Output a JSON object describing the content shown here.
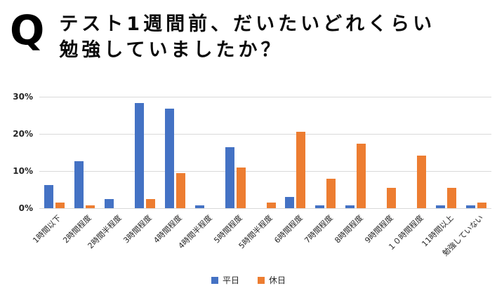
{
  "header": {
    "q_label": "Q",
    "title_line1": "テスト1週間前、だいたいどれくらい",
    "title_line2": "勉強していましたか？"
  },
  "chart_data": {
    "type": "bar",
    "title": "テスト1週間前、だいたいどれくらい勉強していましたか？",
    "categories": [
      "1時間以下",
      "2時間程度",
      "2時間半程度",
      "3時間程度",
      "4時間程度",
      "4時間半程度",
      "5時間程度",
      "5時間半程度",
      "6時間程度",
      "7時間程度",
      "8時間程度",
      "9時間程度",
      "１０時間程度",
      "11時間以上",
      "勉強していない"
    ],
    "series": [
      {
        "name": "平日",
        "slug": "weekday",
        "color": "#4472C4",
        "values": [
          6.3,
          12.6,
          2.4,
          28.3,
          26.8,
          0.8,
          16.5,
          0,
          3.1,
          0.8,
          0.8,
          0,
          0,
          0.8,
          0.8
        ]
      },
      {
        "name": "休日",
        "slug": "holiday",
        "color": "#ED7D31",
        "values": [
          1.6,
          0.8,
          0,
          2.4,
          9.4,
          0,
          11.0,
          1.6,
          20.5,
          7.9,
          17.3,
          5.5,
          14.2,
          5.5,
          1.6
        ]
      }
    ],
    "xlabel": "",
    "ylabel": "",
    "ylim": [
      0,
      30
    ],
    "yticks": [
      {
        "value": 0,
        "label": "0%"
      },
      {
        "value": 10,
        "label": "10%"
      },
      {
        "value": 20,
        "label": "20%"
      },
      {
        "value": 30,
        "label": "30%"
      }
    ],
    "grid": true,
    "legend_position": "bottom",
    "colors": {
      "gridline": "#d9d9d9",
      "axis_text": "#262626"
    }
  }
}
